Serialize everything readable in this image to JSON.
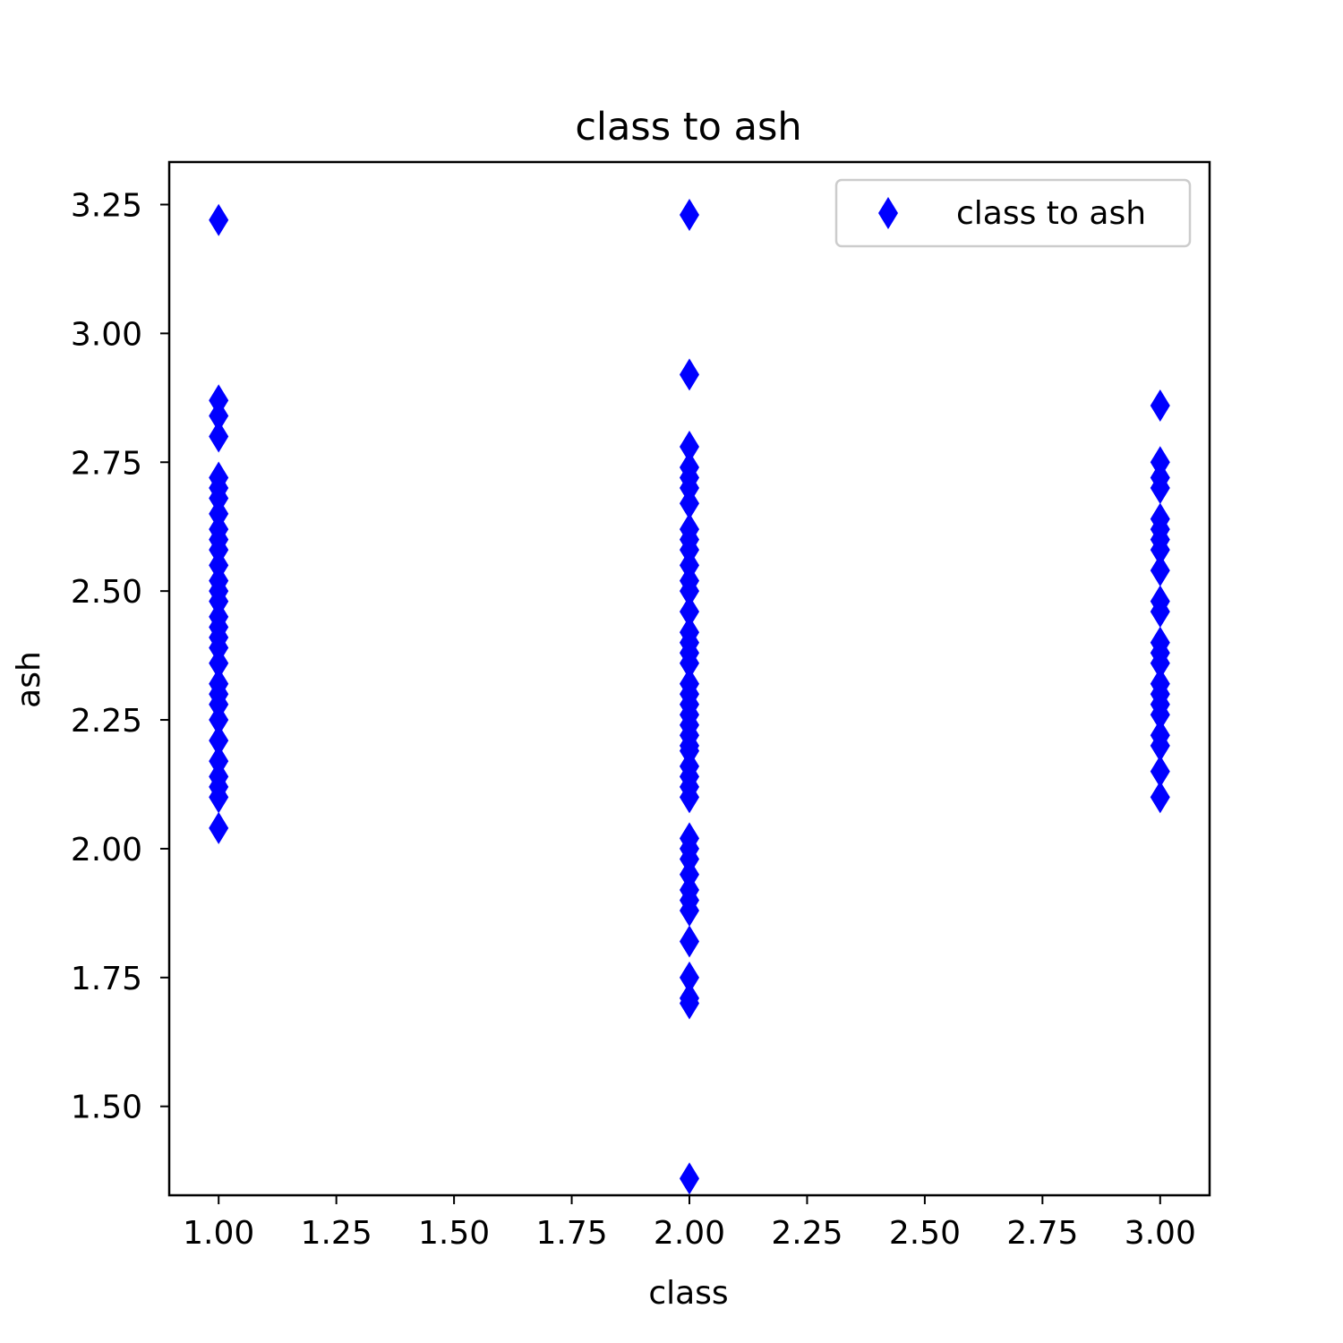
{
  "chart_data": {
    "type": "scatter",
    "title": "class to ash",
    "xlabel": "class",
    "ylabel": "ash",
    "xlim": [
      0.895,
      3.105
    ],
    "ylim": [
      1.3275,
      3.3325
    ],
    "xticks": [
      1.0,
      1.25,
      1.5,
      1.75,
      2.0,
      2.25,
      2.5,
      2.75,
      3.0
    ],
    "xtick_labels": [
      "1.00",
      "1.25",
      "1.50",
      "1.75",
      "2.00",
      "2.25",
      "2.50",
      "2.75",
      "3.00"
    ],
    "yticks": [
      1.5,
      1.75,
      2.0,
      2.25,
      2.5,
      2.75,
      3.0,
      3.25
    ],
    "ytick_labels": [
      "1.50",
      "1.75",
      "2.00",
      "2.25",
      "2.50",
      "2.75",
      "3.00",
      "3.25"
    ],
    "grid": false,
    "legend_position": "top-right",
    "marker": "thin-diamond",
    "color": "#0000ff",
    "series": [
      {
        "name": "class to ash",
        "points": [
          [
            1,
            3.22
          ],
          [
            1,
            2.87
          ],
          [
            1,
            2.84
          ],
          [
            1,
            2.8
          ],
          [
            1,
            2.72
          ],
          [
            1,
            2.7
          ],
          [
            1,
            2.68
          ],
          [
            1,
            2.65
          ],
          [
            1,
            2.62
          ],
          [
            1,
            2.6
          ],
          [
            1,
            2.58
          ],
          [
            1,
            2.55
          ],
          [
            1,
            2.52
          ],
          [
            1,
            2.5
          ],
          [
            1,
            2.48
          ],
          [
            1,
            2.45
          ],
          [
            1,
            2.43
          ],
          [
            1,
            2.41
          ],
          [
            1,
            2.39
          ],
          [
            1,
            2.36
          ],
          [
            1,
            2.32
          ],
          [
            1,
            2.3
          ],
          [
            1,
            2.28
          ],
          [
            1,
            2.25
          ],
          [
            1,
            2.21
          ],
          [
            1,
            2.17
          ],
          [
            1,
            2.14
          ],
          [
            1,
            2.12
          ],
          [
            1,
            2.1
          ],
          [
            1,
            2.04
          ],
          [
            2,
            3.23
          ],
          [
            2,
            2.92
          ],
          [
            2,
            2.78
          ],
          [
            2,
            2.74
          ],
          [
            2,
            2.72
          ],
          [
            2,
            2.7
          ],
          [
            2,
            2.67
          ],
          [
            2,
            2.62
          ],
          [
            2,
            2.6
          ],
          [
            2,
            2.58
          ],
          [
            2,
            2.55
          ],
          [
            2,
            2.52
          ],
          [
            2,
            2.5
          ],
          [
            2,
            2.46
          ],
          [
            2,
            2.42
          ],
          [
            2,
            2.4
          ],
          [
            2,
            2.38
          ],
          [
            2,
            2.36
          ],
          [
            2,
            2.32
          ],
          [
            2,
            2.3
          ],
          [
            2,
            2.28
          ],
          [
            2,
            2.26
          ],
          [
            2,
            2.24
          ],
          [
            2,
            2.22
          ],
          [
            2,
            2.2
          ],
          [
            2,
            2.19
          ],
          [
            2,
            2.16
          ],
          [
            2,
            2.14
          ],
          [
            2,
            2.12
          ],
          [
            2,
            2.1
          ],
          [
            2,
            2.02
          ],
          [
            2,
            2.0
          ],
          [
            2,
            1.98
          ],
          [
            2,
            1.95
          ],
          [
            2,
            1.92
          ],
          [
            2,
            1.9
          ],
          [
            2,
            1.88
          ],
          [
            2,
            1.82
          ],
          [
            2,
            1.75
          ],
          [
            2,
            1.71
          ],
          [
            2,
            1.7
          ],
          [
            2,
            1.36
          ],
          [
            3,
            2.86
          ],
          [
            3,
            2.75
          ],
          [
            3,
            2.72
          ],
          [
            3,
            2.7
          ],
          [
            3,
            2.64
          ],
          [
            3,
            2.62
          ],
          [
            3,
            2.6
          ],
          [
            3,
            2.58
          ],
          [
            3,
            2.54
          ],
          [
            3,
            2.48
          ],
          [
            3,
            2.46
          ],
          [
            3,
            2.4
          ],
          [
            3,
            2.38
          ],
          [
            3,
            2.36
          ],
          [
            3,
            2.32
          ],
          [
            3,
            2.3
          ],
          [
            3,
            2.28
          ],
          [
            3,
            2.26
          ],
          [
            3,
            2.22
          ],
          [
            3,
            2.2
          ],
          [
            3,
            2.15
          ],
          [
            3,
            2.1
          ]
        ]
      }
    ]
  }
}
